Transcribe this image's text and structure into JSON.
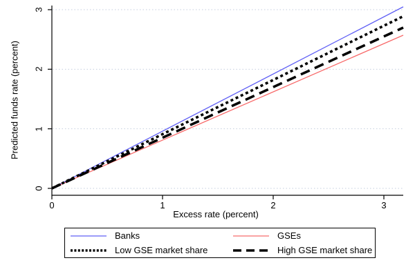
{
  "figure": {
    "background": "#ffffff"
  },
  "colors": {
    "axis": "#000000",
    "text": "#000000",
    "gridline": "#c3cdde",
    "legend_border": "#000000",
    "banks_blue": "#5f5ff5",
    "gses_red": "#f86a6a",
    "black": "#000000"
  },
  "chart_data": {
    "type": "line",
    "title": "",
    "xlabel": "Excess rate (percent)",
    "ylabel": "Predicted funds rate (percent)",
    "xlim": [
      0,
      3.18
    ],
    "ylim": [
      0,
      3.07
    ],
    "x_ticks": [
      0,
      1,
      2,
      3
    ],
    "y_ticks": [
      0,
      1,
      2,
      3
    ],
    "grid": "horizontal dotted gridlines at each y tick, no vertical gridlines",
    "legend_position": "bottom",
    "series": [
      {
        "name": "Banks",
        "color": "#5f5ff5",
        "style": "solid",
        "width": 1.3,
        "x": [
          0,
          3
        ],
        "y": [
          0,
          2.88
        ]
      },
      {
        "name": "GSEs",
        "color": "#f86a6a",
        "style": "solid",
        "width": 1.3,
        "x": [
          0,
          3
        ],
        "y": [
          0,
          2.43
        ]
      },
      {
        "name": "Low GSE market share",
        "color": "#000000",
        "style": "dotted",
        "width": 3.6,
        "x": [
          0,
          3
        ],
        "y": [
          0,
          2.73
        ]
      },
      {
        "name": "High GSE market share",
        "color": "#000000",
        "style": "dashed",
        "width": 3.6,
        "x": [
          0,
          3
        ],
        "y": [
          0,
          2.55
        ]
      }
    ]
  }
}
